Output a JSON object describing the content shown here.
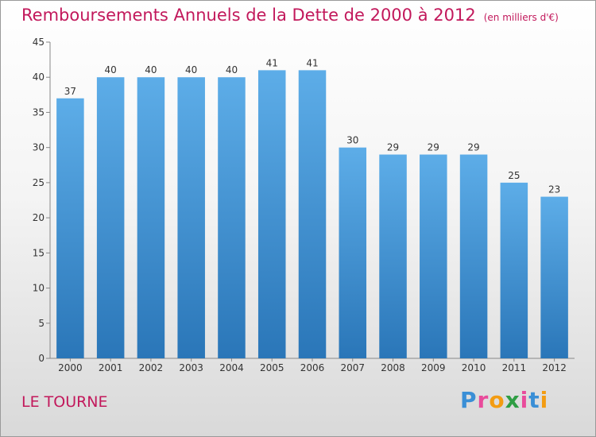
{
  "header": {
    "title": "Remboursements Annuels de la Dette de 2000 à 2012",
    "unit": "(en milliers d'€)"
  },
  "footer": {
    "commune": "LE TOURNE",
    "brand_letters": [
      {
        "char": "P",
        "color": "#3a8fd6"
      },
      {
        "char": "r",
        "color": "#e94b9b"
      },
      {
        "char": "o",
        "color": "#f39c12"
      },
      {
        "char": "x",
        "color": "#2f9e44"
      },
      {
        "char": "i",
        "color": "#e94b9b"
      },
      {
        "char": "t",
        "color": "#3a8fd6"
      },
      {
        "char": "i",
        "color": "#f39c12"
      }
    ]
  },
  "colors": {
    "bar_top": "#5dade8",
    "bar_bottom": "#2a76b8",
    "title": "#c2185b"
  },
  "chart_data": {
    "type": "bar",
    "title": "Remboursements Annuels de la Dette de 2000 à 2012",
    "xlabel": "",
    "ylabel": "",
    "categories": [
      "2000",
      "2001",
      "2002",
      "2003",
      "2004",
      "2005",
      "2006",
      "2007",
      "2008",
      "2009",
      "2010",
      "2011",
      "2012"
    ],
    "values": [
      37,
      40,
      40,
      40,
      40,
      41,
      41,
      30,
      29,
      29,
      29,
      25,
      23
    ],
    "ylim": [
      0,
      45
    ],
    "yticks": [
      0,
      5,
      10,
      15,
      20,
      25,
      30,
      35,
      40,
      45
    ],
    "grid": false,
    "legend": "none"
  }
}
